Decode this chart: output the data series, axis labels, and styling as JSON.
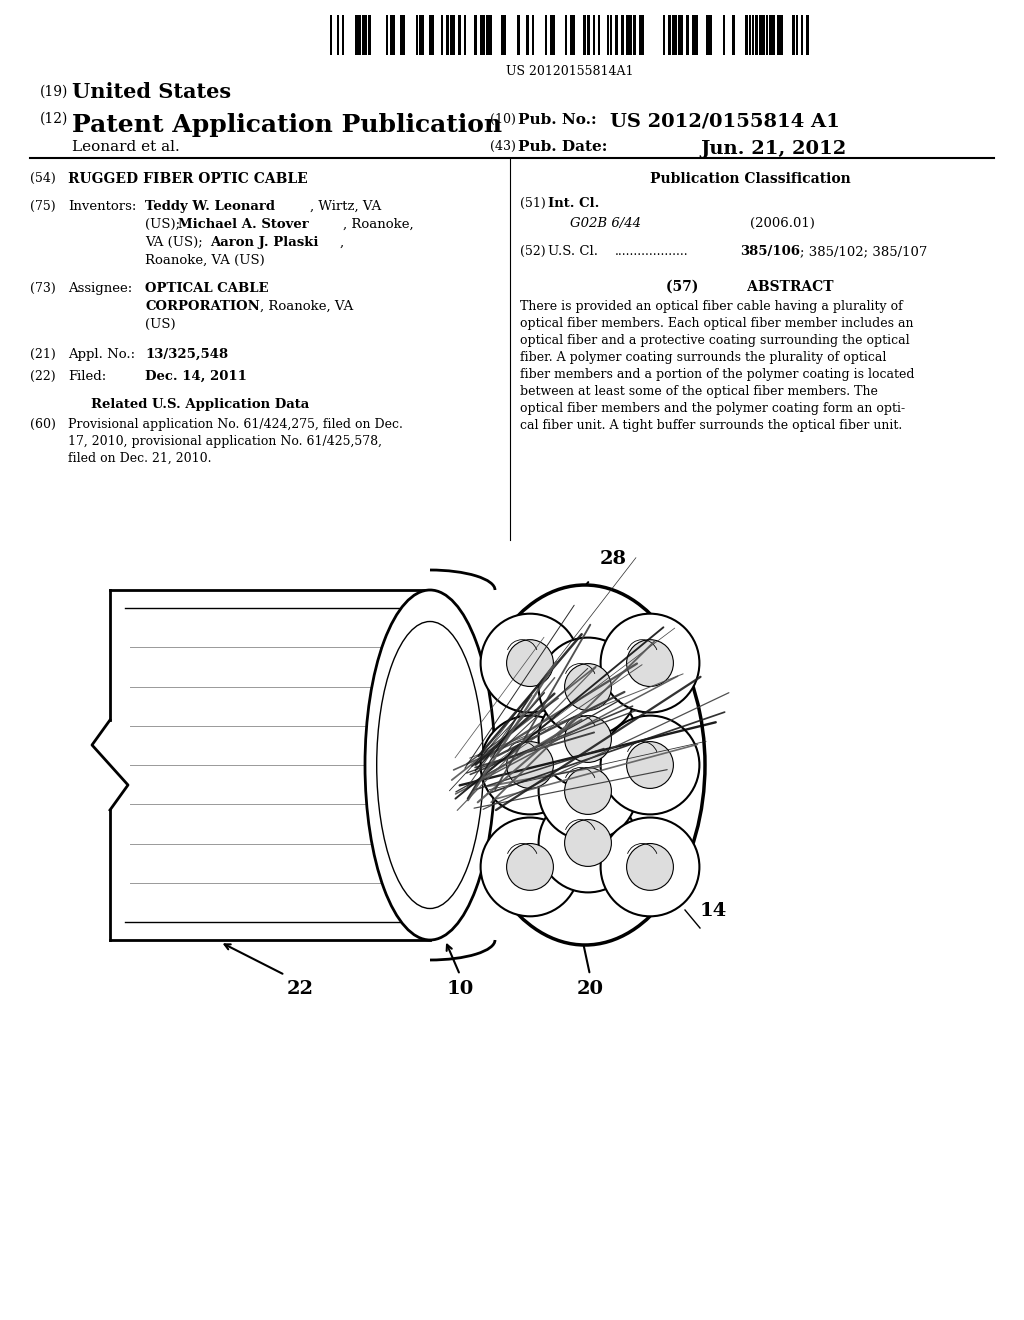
{
  "background_color": "#ffffff",
  "barcode_text": "US 20120155814A1",
  "patent_number": "US 2012/0155814 A1",
  "pub_date": "Jun. 21, 2012",
  "abstract_text": "There is provided an optical fiber cable having a plurality of optical fiber members. Each optical fiber member includes an optical fiber and a protective coating surrounding the optical fiber. A polymer coating surrounds the plurality of optical fiber members and a portion of the polymer coating is located between at least some of the optical fiber members. The optical fiber members and the polymer coating form an opti-cal fiber unit. A tight buffer surrounds the optical fiber unit."
}
